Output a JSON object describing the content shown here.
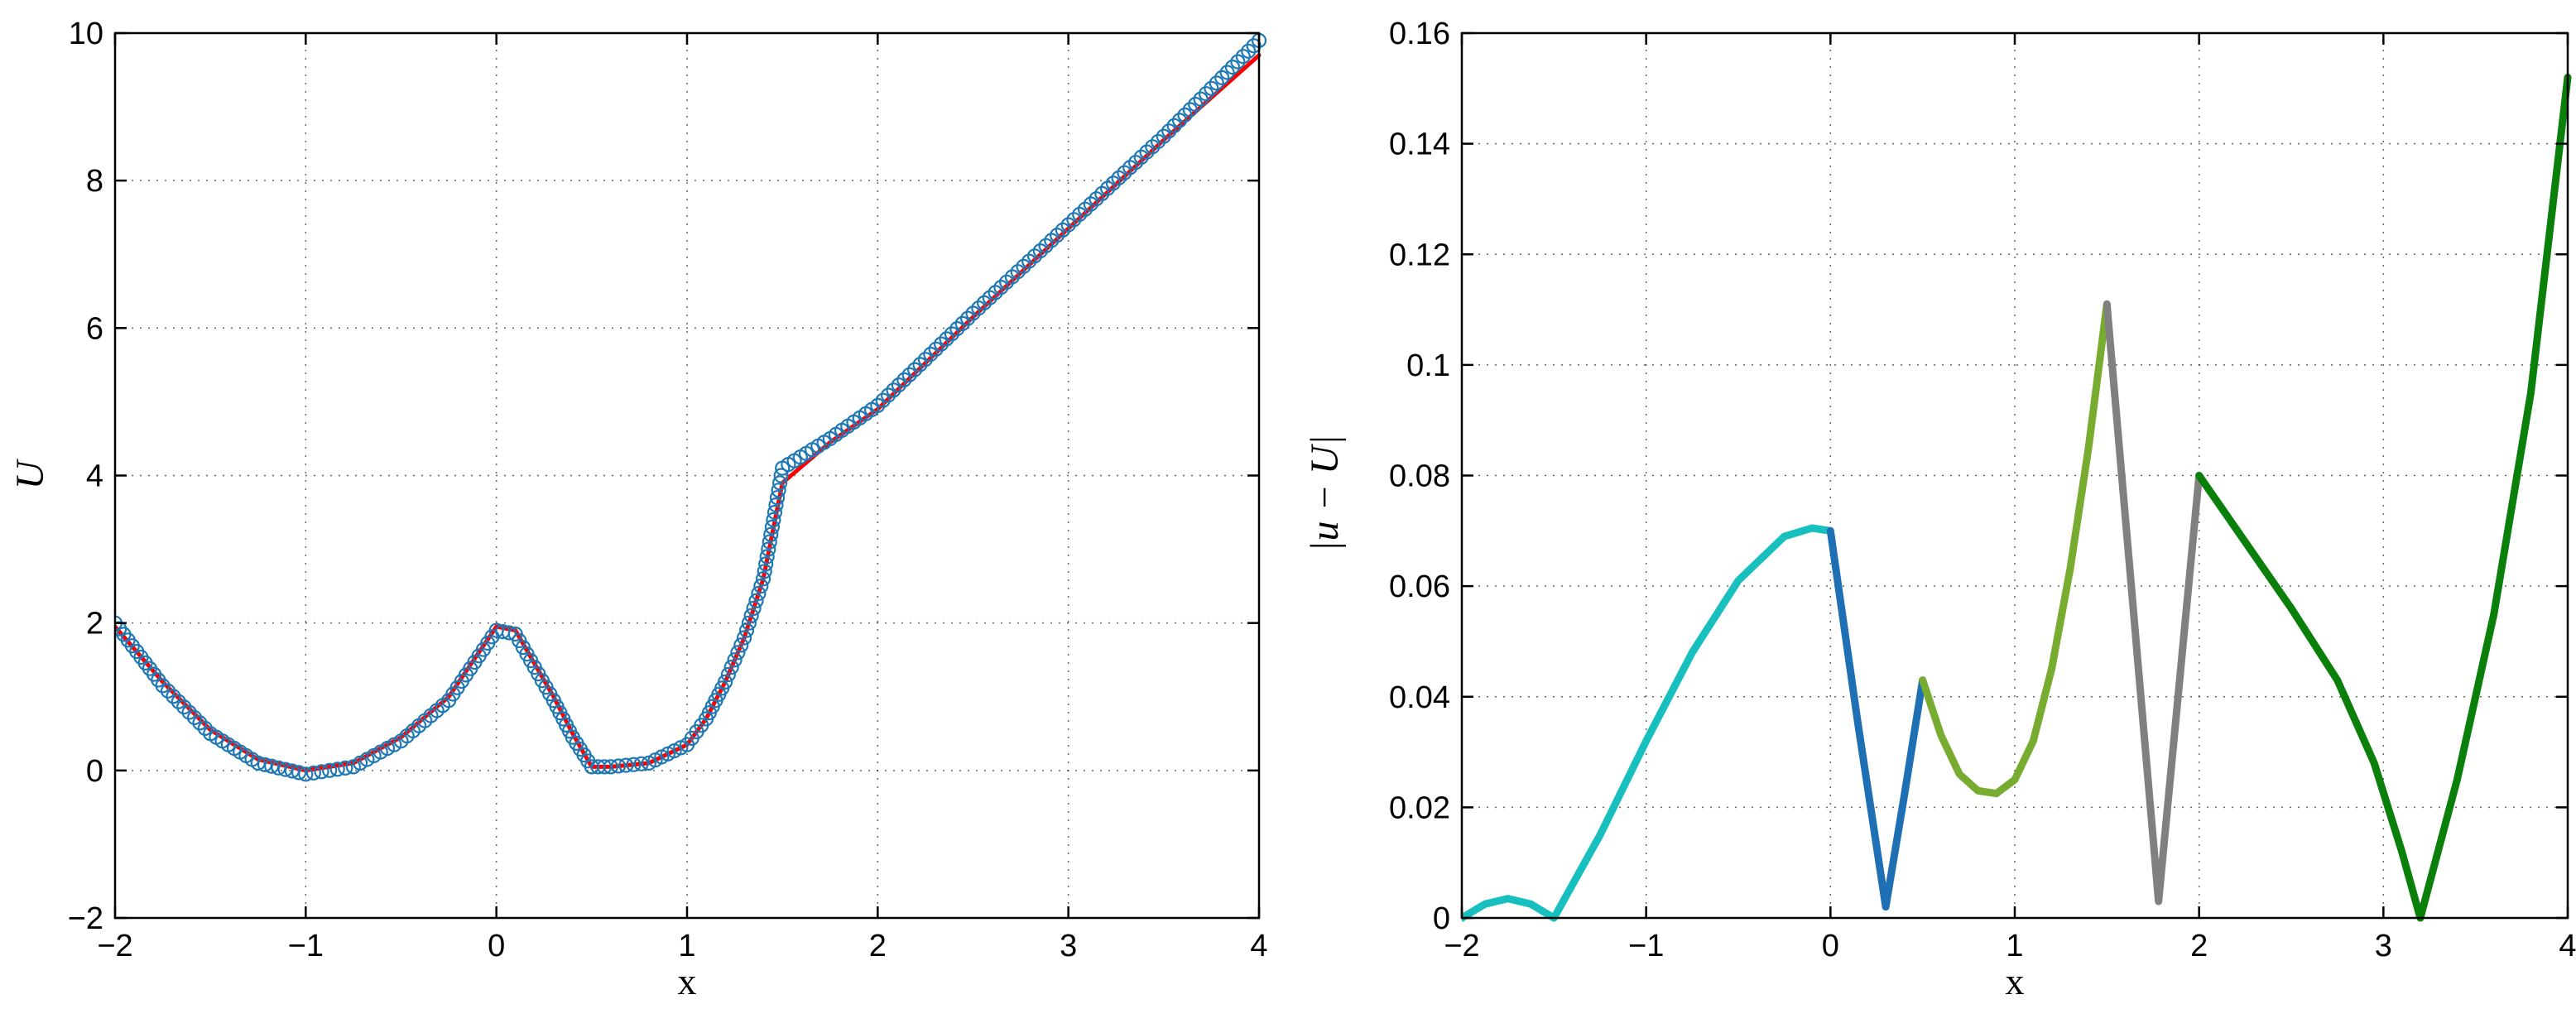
{
  "chart_data": [
    {
      "type": "line",
      "xlabel": "x",
      "ylabel": "U",
      "xlim": [
        -2,
        4
      ],
      "ylim": [
        -2,
        10
      ],
      "xticks": [
        -2,
        -1,
        0,
        1,
        2,
        3,
        4
      ],
      "yticks": [
        -2,
        0,
        2,
        4,
        6,
        8,
        10
      ],
      "xtick_labels": [
        "−2",
        "−1",
        "0",
        "1",
        "2",
        "3",
        "4"
      ],
      "ytick_labels": [
        "−2",
        "0",
        "2",
        "4",
        "6",
        "8",
        "10"
      ],
      "grid": true,
      "series": [
        {
          "style": "solid line",
          "color": "#ff0000",
          "points": [
            [
              -2,
              1.95
            ],
            [
              -1.75,
              1.2
            ],
            [
              -1.5,
              0.55
            ],
            [
              -1.25,
              0.15
            ],
            [
              -1,
              0
            ],
            [
              -0.75,
              0.1
            ],
            [
              -0.5,
              0.45
            ],
            [
              -0.25,
              1.0
            ],
            [
              0,
              1.95
            ],
            [
              0.1,
              1.9
            ],
            [
              0.2,
              1.45
            ],
            [
              0.3,
              1.0
            ],
            [
              0.4,
              0.5
            ],
            [
              0.5,
              0.05
            ],
            [
              0.6,
              0.05
            ],
            [
              0.8,
              0.1
            ],
            [
              1,
              0.35
            ],
            [
              1.1,
              0.7
            ],
            [
              1.2,
              1.2
            ],
            [
              1.3,
              1.8
            ],
            [
              1.4,
              2.6
            ],
            [
              1.5,
              3.9
            ],
            [
              1.75,
              4.45
            ],
            [
              2,
              4.9
            ],
            [
              2.5,
              6.15
            ],
            [
              3,
              7.35
            ],
            [
              3.5,
              8.55
            ],
            [
              4,
              9.7
            ]
          ]
        },
        {
          "style": "circle markers",
          "color": "#1f78b4",
          "points": [
            [
              -2,
              2.0
            ],
            [
              -1.75,
              1.15
            ],
            [
              -1.5,
              0.5
            ],
            [
              -1.25,
              0.1
            ],
            [
              -1,
              -0.05
            ],
            [
              -0.75,
              0.05
            ],
            [
              -0.5,
              0.4
            ],
            [
              -0.25,
              0.95
            ],
            [
              0,
              1.9
            ],
            [
              0.1,
              1.85
            ],
            [
              0.2,
              1.4
            ],
            [
              0.3,
              0.95
            ],
            [
              0.4,
              0.45
            ],
            [
              0.5,
              0.05
            ],
            [
              0.6,
              0.05
            ],
            [
              0.8,
              0.1
            ],
            [
              1,
              0.35
            ],
            [
              1.1,
              0.7
            ],
            [
              1.2,
              1.2
            ],
            [
              1.3,
              1.8
            ],
            [
              1.4,
              2.6
            ],
            [
              1.5,
              4.1
            ],
            [
              1.75,
              4.5
            ],
            [
              2,
              4.95
            ],
            [
              2.5,
              6.2
            ],
            [
              3,
              7.4
            ],
            [
              3.5,
              8.6
            ],
            [
              4,
              9.9
            ]
          ]
        }
      ]
    },
    {
      "type": "line",
      "xlabel": "x",
      "ylabel": "|u − U|",
      "xlim": [
        -2,
        4
      ],
      "ylim": [
        0,
        0.16
      ],
      "xticks": [
        -2,
        -1,
        0,
        1,
        2,
        3,
        4
      ],
      "yticks": [
        0,
        0.02,
        0.04,
        0.06,
        0.08,
        0.1,
        0.12,
        0.14,
        0.16
      ],
      "xtick_labels": [
        "−2",
        "−1",
        "0",
        "1",
        "2",
        "3",
        "4"
      ],
      "ytick_labels": [
        "0",
        "0.02",
        "0.04",
        "0.06",
        "0.08",
        "0.1",
        "0.12",
        "0.14",
        "0.16"
      ],
      "grid": true,
      "series": [
        {
          "color": "#17bfbf",
          "points": [
            [
              -2,
              0
            ],
            [
              -1.875,
              0.0025
            ],
            [
              -1.75,
              0.0035
            ],
            [
              -1.625,
              0.0025
            ],
            [
              -1.5,
              0
            ],
            [
              -1.25,
              0.015
            ],
            [
              -1,
              0.032
            ],
            [
              -0.75,
              0.048
            ],
            [
              -0.5,
              0.061
            ],
            [
              -0.25,
              0.069
            ],
            [
              -0.1,
              0.0705
            ],
            [
              0,
              0.07
            ]
          ]
        },
        {
          "color": "#1f6fb4",
          "points": [
            [
              0,
              0.07
            ],
            [
              0.15,
              0.035
            ],
            [
              0.3,
              0.002
            ],
            [
              0.4,
              0.022
            ],
            [
              0.5,
              0.043
            ]
          ]
        },
        {
          "color": "#77ac30",
          "points": [
            [
              0.5,
              0.043
            ],
            [
              0.6,
              0.033
            ],
            [
              0.7,
              0.026
            ],
            [
              0.8,
              0.023
            ],
            [
              0.9,
              0.0225
            ],
            [
              1.0,
              0.025
            ],
            [
              1.1,
              0.032
            ],
            [
              1.2,
              0.045
            ],
            [
              1.3,
              0.063
            ],
            [
              1.4,
              0.085
            ],
            [
              1.5,
              0.111
            ]
          ]
        },
        {
          "color": "#808080",
          "points": [
            [
              1.5,
              0.111
            ],
            [
              1.78,
              0.003
            ],
            [
              2,
              0.08
            ]
          ]
        },
        {
          "color": "#0a7f0a",
          "points": [
            [
              2,
              0.08
            ],
            [
              2.25,
              0.068
            ],
            [
              2.5,
              0.056
            ],
            [
              2.75,
              0.043
            ],
            [
              2.95,
              0.028
            ],
            [
              3.1,
              0.012
            ],
            [
              3.2,
              0
            ],
            [
              3.4,
              0.025
            ],
            [
              3.6,
              0.055
            ],
            [
              3.8,
              0.095
            ],
            [
              4,
              0.152
            ]
          ]
        }
      ]
    }
  ]
}
